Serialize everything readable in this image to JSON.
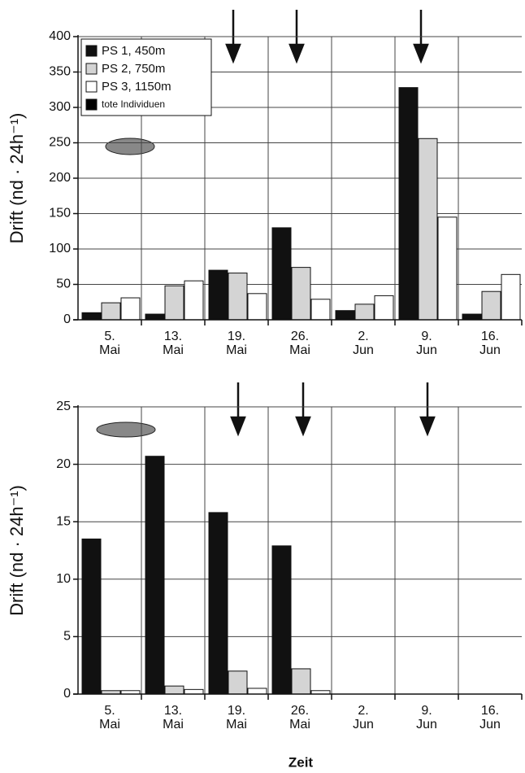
{
  "chart_data": [
    {
      "type": "bar",
      "ylabel": "Drift (nd · 24h⁻¹)",
      "categories": [
        "5.\nMai",
        "13.\nMai",
        "19.\nMai",
        "26.\nMai",
        "2.\nJun",
        "9.\nJun",
        "16.\nJun"
      ],
      "series": [
        {
          "name": "PS 1, 450m",
          "color": "#111111",
          "values": [
            10,
            8,
            70,
            130,
            13,
            328,
            8
          ]
        },
        {
          "name": "PS 2, 750m",
          "color": "#d4d4d4",
          "values": [
            24,
            48,
            66,
            74,
            22,
            256,
            40
          ]
        },
        {
          "name": "PS 3, 1150m",
          "color": "#ffffff",
          "values": [
            31,
            55,
            37,
            29,
            34,
            145,
            64
          ]
        },
        {
          "name": "tote Individuen",
          "color": "#000000",
          "values": [
            null,
            null,
            null,
            null,
            null,
            null,
            null
          ]
        }
      ],
      "ylim": [
        0,
        400
      ],
      "yticks": [
        0,
        50,
        100,
        150,
        200,
        250,
        300,
        350,
        400
      ],
      "grid": true,
      "legend": "upper left"
    },
    {
      "type": "bar",
      "ylabel": "Drift (nd · 24h⁻¹)",
      "xlabel": "Zeit",
      "categories": [
        "5.\nMai",
        "13.\nMai",
        "19.\nMai",
        "26.\nMai",
        "2.\nJun",
        "9.\nJun",
        "16.\nJun"
      ],
      "series": [
        {
          "color": "#111111",
          "values": [
            13.5,
            20.7,
            15.8,
            12.9,
            null,
            null,
            null
          ]
        },
        {
          "color": "#d4d4d4",
          "values": [
            0.3,
            0.7,
            2.0,
            2.2,
            null,
            null,
            null
          ]
        },
        {
          "color": "#ffffff",
          "values": [
            0.3,
            0.4,
            0.5,
            0.3,
            null,
            null,
            null
          ]
        }
      ],
      "ylim": [
        0,
        25
      ],
      "yticks": [
        0,
        5,
        10,
        15,
        20,
        25
      ],
      "grid": true
    }
  ]
}
